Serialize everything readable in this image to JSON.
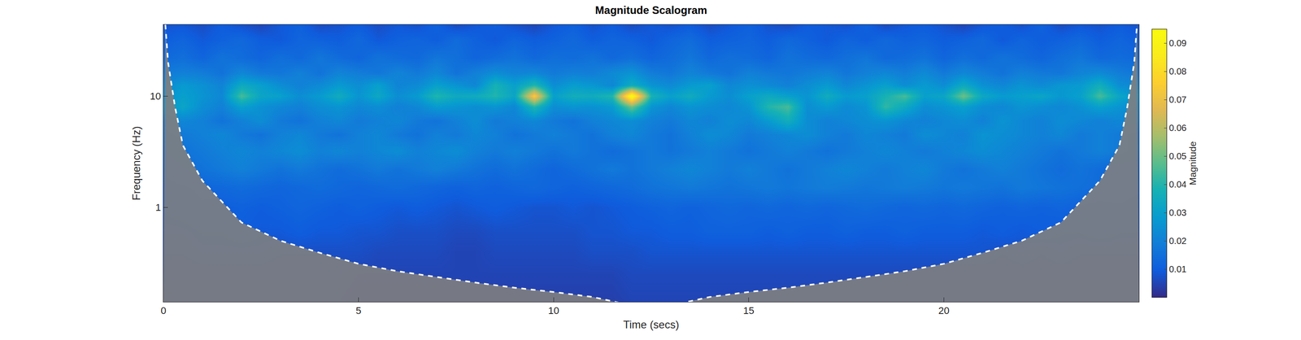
{
  "chart_data": {
    "type": "heatmap",
    "title": "Magnitude Scalogram",
    "xlabel": "Time (secs)",
    "ylabel": "Frequency (Hz)",
    "colorbar_label": "Magnitude",
    "log": "y",
    "xlim": [
      0,
      25
    ],
    "xticks": [
      0,
      5,
      10,
      15,
      20
    ],
    "ylim": [
      0.141,
      43.8
    ],
    "yticks": [
      1,
      10
    ],
    "colorbar_range": [
      0,
      0.095
    ],
    "colorbar_ticks": [
      0.01,
      0.02,
      0.03,
      0.04,
      0.05,
      0.06,
      0.07,
      0.08,
      0.09
    ],
    "x": [
      0,
      0.5,
      1,
      1.5,
      2,
      2.5,
      3,
      3.5,
      4,
      4.5,
      5,
      5.5,
      6,
      6.5,
      7,
      7.5,
      8,
      8.5,
      9,
      9.5,
      10,
      10.5,
      11,
      11.5,
      12,
      12.5,
      13,
      13.5,
      14,
      14.5,
      15,
      15.5,
      16,
      16.5,
      17,
      17.5,
      18,
      18.5,
      19,
      19.5,
      20,
      20.5,
      21,
      21.5,
      22,
      22.5,
      23,
      23.5,
      24,
      24.5,
      25
    ],
    "y": [
      0.14,
      0.25,
      0.4,
      0.6,
      1,
      1.5,
      2.2,
      3.2,
      4.5,
      6,
      8,
      10,
      12.5,
      16,
      22,
      32,
      42
    ],
    "z": [
      [
        0.005,
        0.005,
        0.005,
        0.005,
        0.005,
        0.005,
        0.005,
        0.005,
        0.005,
        0.005,
        0.004,
        0.004,
        0.004,
        0.004,
        0.004,
        0.004,
        0.004,
        0.004,
        0.004,
        0.004,
        0.004,
        0.004,
        0.004,
        0.004,
        0.005,
        0.005,
        0.005,
        0.005,
        0.005,
        0.005,
        0.005,
        0.005,
        0.005,
        0.005,
        0.005,
        0.005,
        0.005,
        0.005,
        0.005,
        0.005,
        0.005,
        0.005,
        0.005,
        0.005,
        0.005,
        0.005,
        0.005,
        0.005,
        0.005,
        0.005,
        0.005
      ],
      [
        0.006,
        0.006,
        0.006,
        0.006,
        0.006,
        0.006,
        0.006,
        0.006,
        0.006,
        0.006,
        0.005,
        0.005,
        0.005,
        0.005,
        0.005,
        0.005,
        0.005,
        0.005,
        0.005,
        0.005,
        0.005,
        0.005,
        0.005,
        0.005,
        0.006,
        0.006,
        0.006,
        0.006,
        0.006,
        0.006,
        0.006,
        0.006,
        0.006,
        0.006,
        0.006,
        0.006,
        0.006,
        0.006,
        0.006,
        0.006,
        0.006,
        0.006,
        0.006,
        0.006,
        0.006,
        0.006,
        0.006,
        0.006,
        0.006,
        0.006,
        0.006
      ],
      [
        0.007,
        0.007,
        0.008,
        0.008,
        0.008,
        0.008,
        0.007,
        0.007,
        0.007,
        0.007,
        0.007,
        0.006,
        0.006,
        0.006,
        0.006,
        0.005,
        0.005,
        0.006,
        0.006,
        0.006,
        0.006,
        0.006,
        0.007,
        0.007,
        0.007,
        0.008,
        0.008,
        0.008,
        0.008,
        0.008,
        0.008,
        0.008,
        0.008,
        0.008,
        0.008,
        0.008,
        0.008,
        0.008,
        0.008,
        0.008,
        0.008,
        0.008,
        0.008,
        0.007,
        0.008,
        0.007,
        0.008,
        0.007,
        0.007,
        0.007,
        0.007
      ],
      [
        0.008,
        0.008,
        0.009,
        0.009,
        0.01,
        0.009,
        0.009,
        0.01,
        0.009,
        0.009,
        0.008,
        0.008,
        0.007,
        0.007,
        0.007,
        0.006,
        0.006,
        0.007,
        0.007,
        0.007,
        0.007,
        0.007,
        0.008,
        0.008,
        0.009,
        0.009,
        0.01,
        0.01,
        0.011,
        0.011,
        0.011,
        0.01,
        0.011,
        0.01,
        0.01,
        0.011,
        0.01,
        0.01,
        0.011,
        0.01,
        0.01,
        0.01,
        0.009,
        0.01,
        0.009,
        0.01,
        0.009,
        0.009,
        0.01,
        0.009,
        0.009
      ],
      [
        0.009,
        0.01,
        0.011,
        0.01,
        0.011,
        0.01,
        0.011,
        0.012,
        0.011,
        0.01,
        0.011,
        0.01,
        0.009,
        0.01,
        0.009,
        0.008,
        0.009,
        0.01,
        0.009,
        0.008,
        0.008,
        0.009,
        0.008,
        0.009,
        0.01,
        0.011,
        0.012,
        0.011,
        0.012,
        0.013,
        0.012,
        0.013,
        0.012,
        0.013,
        0.012,
        0.013,
        0.014,
        0.013,
        0.012,
        0.013,
        0.012,
        0.013,
        0.012,
        0.011,
        0.012,
        0.011,
        0.012,
        0.011,
        0.01,
        0.011,
        0.01
      ],
      [
        0.01,
        0.011,
        0.012,
        0.013,
        0.014,
        0.013,
        0.012,
        0.013,
        0.014,
        0.013,
        0.012,
        0.013,
        0.014,
        0.013,
        0.012,
        0.011,
        0.012,
        0.011,
        0.012,
        0.013,
        0.012,
        0.011,
        0.012,
        0.013,
        0.014,
        0.016,
        0.017,
        0.018,
        0.017,
        0.016,
        0.017,
        0.018,
        0.017,
        0.018,
        0.019,
        0.018,
        0.017,
        0.018,
        0.019,
        0.018,
        0.017,
        0.018,
        0.017,
        0.016,
        0.018,
        0.017,
        0.016,
        0.015,
        0.014,
        0.013,
        0.012
      ],
      [
        0.012,
        0.014,
        0.016,
        0.018,
        0.02,
        0.018,
        0.016,
        0.018,
        0.016,
        0.014,
        0.016,
        0.018,
        0.016,
        0.018,
        0.02,
        0.018,
        0.016,
        0.014,
        0.016,
        0.014,
        0.012,
        0.014,
        0.016,
        0.018,
        0.016,
        0.018,
        0.02,
        0.022,
        0.02,
        0.018,
        0.02,
        0.018,
        0.016,
        0.018,
        0.02,
        0.022,
        0.02,
        0.018,
        0.02,
        0.022,
        0.018,
        0.016,
        0.018,
        0.02,
        0.018,
        0.016,
        0.014,
        0.016,
        0.014,
        0.012,
        0.012
      ],
      [
        0.014,
        0.016,
        0.018,
        0.02,
        0.022,
        0.02,
        0.022,
        0.024,
        0.02,
        0.022,
        0.02,
        0.022,
        0.024,
        0.02,
        0.022,
        0.024,
        0.02,
        0.018,
        0.02,
        0.018,
        0.016,
        0.018,
        0.016,
        0.014,
        0.016,
        0.018,
        0.016,
        0.018,
        0.02,
        0.018,
        0.016,
        0.018,
        0.02,
        0.018,
        0.016,
        0.018,
        0.02,
        0.022,
        0.02,
        0.018,
        0.02,
        0.022,
        0.024,
        0.022,
        0.02,
        0.018,
        0.016,
        0.018,
        0.02,
        0.018,
        0.016
      ],
      [
        0.016,
        0.018,
        0.02,
        0.022,
        0.018,
        0.016,
        0.02,
        0.022,
        0.018,
        0.016,
        0.02,
        0.022,
        0.018,
        0.016,
        0.02,
        0.018,
        0.022,
        0.02,
        0.016,
        0.018,
        0.02,
        0.018,
        0.016,
        0.02,
        0.022,
        0.018,
        0.016,
        0.02,
        0.024,
        0.022,
        0.018,
        0.02,
        0.022,
        0.024,
        0.02,
        0.018,
        0.022,
        0.02,
        0.018,
        0.024,
        0.022,
        0.02,
        0.026,
        0.024,
        0.022,
        0.02,
        0.022,
        0.018,
        0.02,
        0.018,
        0.016
      ],
      [
        0.018,
        0.022,
        0.02,
        0.016,
        0.02,
        0.024,
        0.018,
        0.016,
        0.02,
        0.022,
        0.018,
        0.02,
        0.022,
        0.018,
        0.016,
        0.02,
        0.024,
        0.018,
        0.02,
        0.022,
        0.018,
        0.016,
        0.02,
        0.022,
        0.024,
        0.02,
        0.018,
        0.022,
        0.02,
        0.024,
        0.022,
        0.028,
        0.036,
        0.024,
        0.02,
        0.022,
        0.024,
        0.026,
        0.022,
        0.02,
        0.022,
        0.024,
        0.02,
        0.026,
        0.022,
        0.02,
        0.024,
        0.022,
        0.02,
        0.022,
        0.02
      ],
      [
        0.026,
        0.032,
        0.024,
        0.02,
        0.03,
        0.025,
        0.022,
        0.02,
        0.024,
        0.026,
        0.022,
        0.024,
        0.02,
        0.022,
        0.028,
        0.026,
        0.024,
        0.026,
        0.022,
        0.04,
        0.024,
        0.026,
        0.025,
        0.028,
        0.05,
        0.026,
        0.022,
        0.026,
        0.024,
        0.022,
        0.026,
        0.04,
        0.045,
        0.024,
        0.028,
        0.023,
        0.026,
        0.042,
        0.034,
        0.024,
        0.026,
        0.03,
        0.024,
        0.022,
        0.026,
        0.024,
        0.022,
        0.025,
        0.03,
        0.026,
        0.022
      ],
      [
        0.024,
        0.03,
        0.026,
        0.022,
        0.045,
        0.032,
        0.03,
        0.024,
        0.028,
        0.035,
        0.026,
        0.033,
        0.024,
        0.028,
        0.04,
        0.034,
        0.035,
        0.04,
        0.032,
        0.075,
        0.03,
        0.036,
        0.035,
        0.04,
        0.095,
        0.038,
        0.03,
        0.035,
        0.028,
        0.024,
        0.03,
        0.034,
        0.03,
        0.026,
        0.035,
        0.028,
        0.03,
        0.038,
        0.045,
        0.03,
        0.032,
        0.05,
        0.033,
        0.028,
        0.03,
        0.032,
        0.027,
        0.03,
        0.045,
        0.032,
        0.026
      ],
      [
        0.022,
        0.028,
        0.025,
        0.021,
        0.034,
        0.03,
        0.024,
        0.02,
        0.023,
        0.028,
        0.024,
        0.03,
        0.021,
        0.023,
        0.03,
        0.026,
        0.022,
        0.038,
        0.03,
        0.04,
        0.024,
        0.029,
        0.027,
        0.022,
        0.035,
        0.026,
        0.023,
        0.028,
        0.03,
        0.022,
        0.025,
        0.023,
        0.02,
        0.024,
        0.028,
        0.022,
        0.026,
        0.03,
        0.024,
        0.028,
        0.024,
        0.034,
        0.025,
        0.022,
        0.026,
        0.023,
        0.027,
        0.028,
        0.036,
        0.024,
        0.022
      ],
      [
        0.018,
        0.02,
        0.019,
        0.016,
        0.022,
        0.018,
        0.017,
        0.02,
        0.016,
        0.021,
        0.019,
        0.017,
        0.021,
        0.018,
        0.022,
        0.016,
        0.02,
        0.024,
        0.021,
        0.022,
        0.018,
        0.02,
        0.019,
        0.023,
        0.026,
        0.019,
        0.017,
        0.021,
        0.018,
        0.016,
        0.02,
        0.018,
        0.017,
        0.019,
        0.021,
        0.017,
        0.02,
        0.022,
        0.019,
        0.023,
        0.018,
        0.022,
        0.019,
        0.016,
        0.02,
        0.018,
        0.017,
        0.021,
        0.023,
        0.019,
        0.017
      ],
      [
        0.013,
        0.015,
        0.012,
        0.016,
        0.014,
        0.012,
        0.015,
        0.013,
        0.017,
        0.014,
        0.012,
        0.016,
        0.014,
        0.013,
        0.017,
        0.015,
        0.012,
        0.014,
        0.016,
        0.013,
        0.015,
        0.014,
        0.016,
        0.013,
        0.015,
        0.012,
        0.014,
        0.017,
        0.013,
        0.015,
        0.014,
        0.012,
        0.016,
        0.014,
        0.013,
        0.015,
        0.017,
        0.013,
        0.014,
        0.016,
        0.012,
        0.015,
        0.013,
        0.016,
        0.014,
        0.012,
        0.015,
        0.017,
        0.013,
        0.014,
        0.013
      ],
      [
        0.01,
        0.012,
        0.009,
        0.011,
        0.013,
        0.01,
        0.009,
        0.012,
        0.011,
        0.01,
        0.013,
        0.009,
        0.011,
        0.012,
        0.01,
        0.014,
        0.011,
        0.009,
        0.012,
        0.01,
        0.011,
        0.013,
        0.01,
        0.012,
        0.011,
        0.009,
        0.012,
        0.014,
        0.01,
        0.011,
        0.012,
        0.01,
        0.013,
        0.011,
        0.009,
        0.012,
        0.01,
        0.013,
        0.011,
        0.012,
        0.01,
        0.011,
        0.013,
        0.009,
        0.012,
        0.01,
        0.011,
        0.013,
        0.01,
        0.012,
        0.01
      ],
      [
        0.008,
        0.009,
        0.007,
        0.01,
        0.008,
        0.006,
        0.009,
        0.011,
        0.007,
        0.008,
        0.01,
        0.007,
        0.009,
        0.008,
        0.011,
        0.007,
        0.009,
        0.01,
        0.008,
        0.006,
        0.009,
        0.011,
        0.008,
        0.01,
        0.007,
        0.009,
        0.008,
        0.01,
        0.007,
        0.009,
        0.011,
        0.008,
        0.007,
        0.01,
        0.009,
        0.008,
        0.011,
        0.007,
        0.009,
        0.01,
        0.008,
        0.006,
        0.009,
        0.01,
        0.008,
        0.011,
        0.007,
        0.009,
        0.008,
        0.01,
        0.008
      ]
    ],
    "coi": {
      "x": [
        0.05,
        0.12,
        0.3,
        0.5,
        1,
        2,
        3,
        4,
        5,
        6,
        7,
        8,
        9,
        10,
        11,
        12.5,
        14,
        15,
        16,
        17,
        18,
        19,
        20,
        21,
        22,
        23,
        24,
        24.5,
        24.7,
        24.88,
        24.95
      ],
      "y": [
        43.8,
        20,
        7.9,
        3.6,
        1.73,
        0.73,
        0.5,
        0.39,
        0.31,
        0.266,
        0.236,
        0.21,
        0.189,
        0.173,
        0.156,
        0.12,
        0.156,
        0.173,
        0.189,
        0.21,
        0.236,
        0.266,
        0.31,
        0.39,
        0.5,
        0.73,
        1.73,
        3.6,
        7.9,
        20,
        43.8
      ]
    }
  }
}
